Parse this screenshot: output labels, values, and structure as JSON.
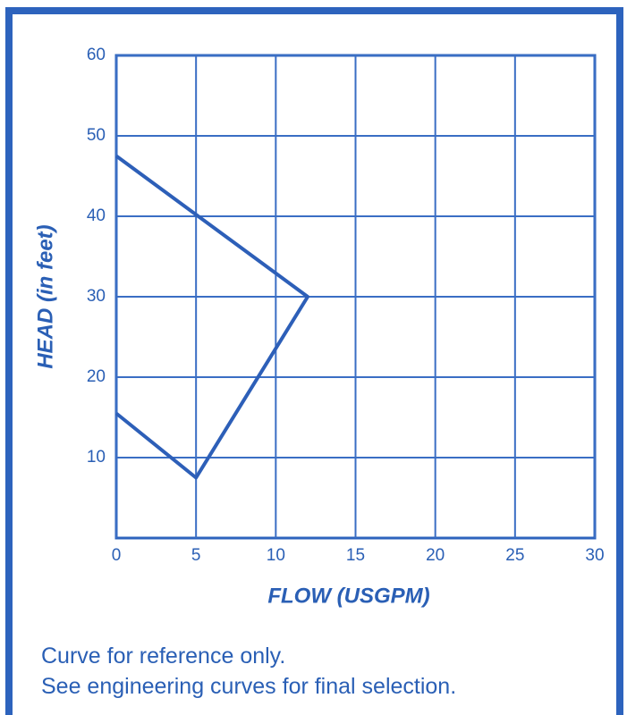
{
  "chart_data": {
    "type": "line",
    "xlabel": "FLOW (USGPM)",
    "ylabel": "HEAD (in feet)",
    "notes": [
      "Curve for reference only.",
      "See engineering curves for final selection."
    ],
    "x": [
      0,
      12,
      5,
      0
    ],
    "values": [
      47.5,
      30,
      7.5,
      15.5
    ],
    "color": "#2d5fb8",
    "xlim": [
      0,
      30
    ],
    "xticks": [
      0,
      5,
      10,
      15,
      20,
      25,
      30
    ],
    "ylim": [
      0,
      60
    ],
    "yticks": [
      10,
      20,
      30,
      40,
      50,
      60
    ],
    "grid": true
  }
}
